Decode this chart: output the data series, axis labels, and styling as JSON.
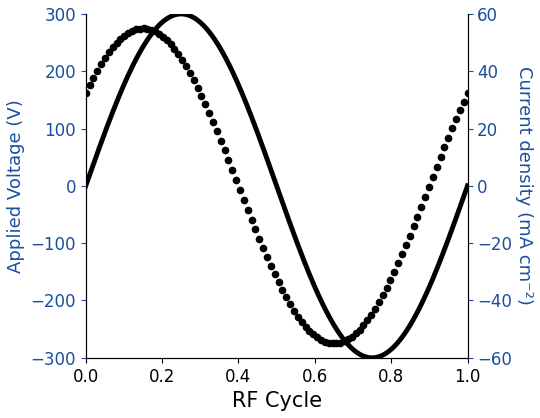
{
  "title": "",
  "xlabel": "RF Cycle",
  "ylabel_left": "Applied Voltage (V)",
  "ylabel_right": "Current density (mA cm⁻²)",
  "xlim": [
    0.0,
    1.0
  ],
  "ylim_left": [
    -300,
    300
  ],
  "ylim_right": [
    -60,
    60
  ],
  "xticks": [
    0.0,
    0.2,
    0.4,
    0.6,
    0.8,
    1.0
  ],
  "yticks_left": [
    -300,
    -200,
    -100,
    0,
    100,
    200,
    300
  ],
  "yticks_right": [
    -60,
    -40,
    -20,
    0,
    20,
    40,
    60
  ],
  "voltage_amplitude": 300,
  "current_amplitude": 55,
  "voltage_phase_lead": 0.0,
  "current_phase_lead": 0.1,
  "axis_label_color": "#1a4fa0",
  "tick_label_color": "#1a4fa0",
  "line_color": "#000000",
  "dot_color": "#000000",
  "background_color": "#ffffff",
  "xlabel_fontsize": 15,
  "ylabel_fontsize": 13,
  "tick_fontsize": 12,
  "line_width": 3.5,
  "dot_size": 4.5,
  "n_dots": 100
}
